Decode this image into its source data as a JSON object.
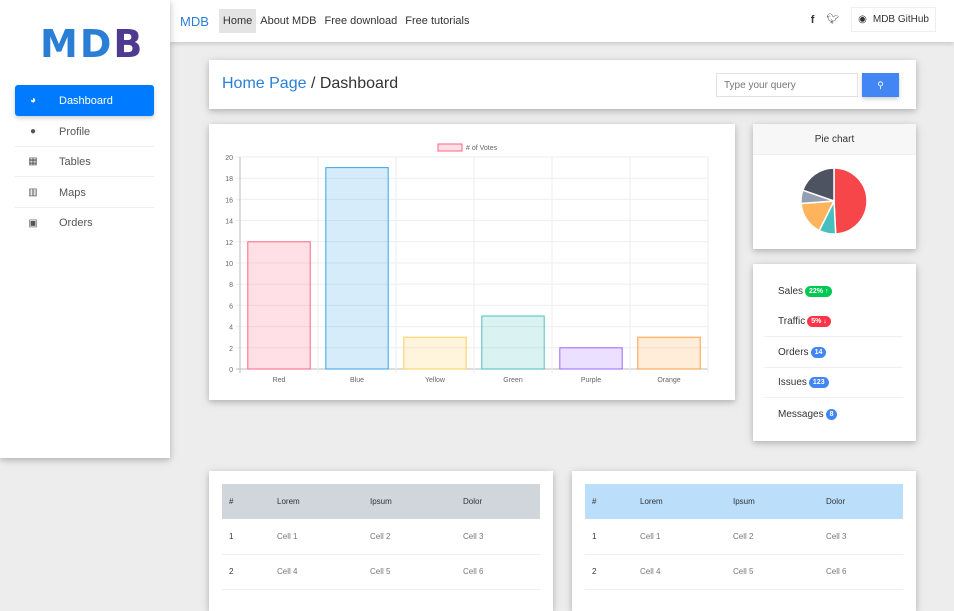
{
  "sidebar": {
    "logo": "MDB",
    "items": [
      {
        "label": "Dashboard",
        "icon": "pie-chart-icon",
        "active": true
      },
      {
        "label": "Profile",
        "icon": "user-icon"
      },
      {
        "label": "Tables",
        "icon": "table-icon"
      },
      {
        "label": "Maps",
        "icon": "map-icon"
      },
      {
        "label": "Orders",
        "icon": "money-icon"
      }
    ]
  },
  "navbar": {
    "brand": "MDB",
    "links": [
      "Home",
      "About MDB",
      "Free download",
      "Free tutorials"
    ],
    "github": "MDB GitHub"
  },
  "breadcrumb": {
    "home": "Home Page",
    "separator": " / ",
    "current": "Dashboard"
  },
  "search": {
    "placeholder": "Type your query"
  },
  "chart_data": [
    {
      "type": "bar",
      "legend": "# of Votes",
      "legend_position": "top",
      "categories": [
        "Red",
        "Blue",
        "Yellow",
        "Green",
        "Purple",
        "Orange"
      ],
      "values": [
        12,
        19,
        3,
        5,
        2,
        3
      ],
      "ylim": [
        0,
        20
      ],
      "yticks": [
        0,
        2,
        4,
        6,
        8,
        10,
        12,
        14,
        16,
        18,
        20
      ],
      "grid": true,
      "fill": [
        "rgba(255,99,132,0.2)",
        "rgba(54,162,235,0.2)",
        "rgba(255,206,86,0.2)",
        "rgba(75,192,192,0.2)",
        "rgba(153,102,255,0.2)",
        "rgba(255,159,64,0.2)"
      ],
      "stroke": [
        "#ff6384",
        "#36a2eb",
        "#ffce56",
        "#4bc0c0",
        "#9966ff",
        "#ff9f40"
      ]
    },
    {
      "type": "pie",
      "title": "Pie chart",
      "values": [
        300,
        50,
        100,
        40,
        120
      ],
      "colors": [
        "#F7464A",
        "#46BFBD",
        "#FDB45C",
        "#949FB1",
        "#4D5360"
      ]
    }
  ],
  "stats": [
    {
      "label": "Sales",
      "badge": "22% ↑",
      "color": "#00c851"
    },
    {
      "label": "Traffic",
      "badge": "5% ↓",
      "color": "#ff3547"
    },
    {
      "label": "Orders",
      "badge": "14",
      "color": "#4285f4"
    },
    {
      "label": "Issues",
      "badge": "123",
      "color": "#4285f4"
    },
    {
      "label": "Messages",
      "badge": "8",
      "color": "#4285f4"
    }
  ],
  "tables": [
    {
      "header_color": "#d0d6db",
      "headers": [
        "#",
        "Lorem",
        "Ipsum",
        "Dolor"
      ],
      "rows": [
        [
          "1",
          "Cell 1",
          "Cell 2",
          "Cell 3"
        ],
        [
          "2",
          "Cell 4",
          "Cell 5",
          "Cell 6"
        ]
      ]
    },
    {
      "header_color": "#bbdefb",
      "headers": [
        "#",
        "Lorem",
        "Ipsum",
        "Dolor"
      ],
      "rows": [
        [
          "1",
          "Cell 1",
          "Cell 2",
          "Cell 3"
        ],
        [
          "2",
          "Cell 4",
          "Cell 5",
          "Cell 6"
        ]
      ]
    }
  ]
}
